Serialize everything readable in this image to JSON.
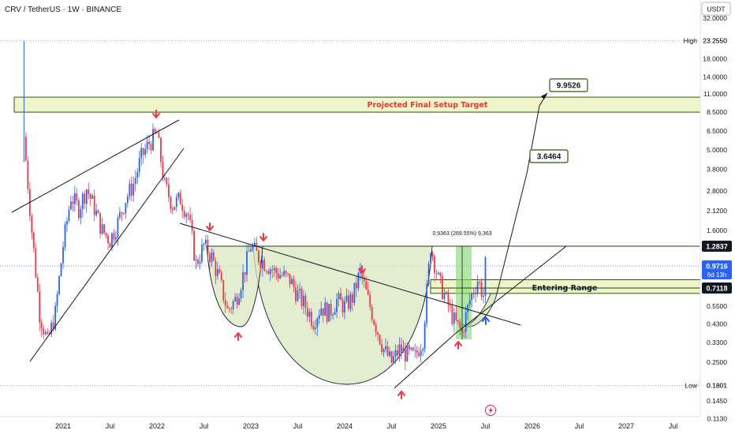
{
  "header": {
    "title": "CRV / TetherUS · 1W · BINANCE",
    "currency": "USDT"
  },
  "price_axis": {
    "ticks": [
      "32.0000",
      "23.2550",
      "18.0000",
      "14.0000",
      "11.0000",
      "8.5000",
      "6.5000",
      "5.0000",
      "3.8000",
      "2.8000",
      "2.1200",
      "1.6000",
      "1.2837",
      "0.9716",
      "0.7118",
      "0.5500",
      "0.4300",
      "0.3300",
      "0.2500",
      "0.1801",
      "0.1450",
      "0.1130"
    ],
    "high_label": "High",
    "low_label": "Low",
    "high_value": "23.2550",
    "low_value": "0.1801",
    "current_price": "0.9716",
    "countdown": "6d 13h",
    "level_1": "1.2837",
    "level_2": "0.7118"
  },
  "time_axis": [
    "2021",
    "Jul",
    "2022",
    "Jul",
    "2023",
    "Jul",
    "2024",
    "Jul",
    "2025",
    "Jul",
    "2026",
    "Jul",
    "2027",
    "Jul"
  ],
  "annotations": {
    "target_zone": "Projected Final Setup Target",
    "entry_zone": "Entering Range",
    "target_1": "3.6464",
    "target_2": "9.9526",
    "measure": "0.9363 (269.55%) 9,363"
  },
  "colors": {
    "up": "#2962ff",
    "down": "#f23645",
    "zone_fill": "#eef5c8",
    "zone_stroke": "#2e5b12",
    "pattern_fill": "#d9e8c0",
    "green_box": "#7fd86d"
  },
  "chart_data": {
    "type": "candlestick",
    "title": "CRV / TetherUS · 1W · BINANCE",
    "y_scale": "log",
    "ylim": [
      0.113,
      32
    ],
    "x_range": [
      "2020-08",
      "2027-09"
    ],
    "price_path": [
      [
        "2020-08",
        6.0
      ],
      [
        "2020-09",
        1.6
      ],
      [
        "2020-10",
        0.5
      ],
      [
        "2020-11",
        0.33
      ],
      [
        "2020-12",
        0.5
      ],
      [
        "2021-01",
        1.3
      ],
      [
        "2021-02",
        2.6
      ],
      [
        "2021-03",
        2.2
      ],
      [
        "2021-04",
        2.9
      ],
      [
        "2021-05",
        2.2
      ],
      [
        "2021-06",
        1.6
      ],
      [
        "2021-07",
        1.4
      ],
      [
        "2021-08",
        1.8
      ],
      [
        "2021-09",
        2.5
      ],
      [
        "2021-10",
        3.1
      ],
      [
        "2021-11",
        4.5
      ],
      [
        "2021-12",
        5.5
      ],
      [
        "2022-01",
        6.3
      ],
      [
        "2022-02",
        3.0
      ],
      [
        "2022-03",
        2.3
      ],
      [
        "2022-04",
        2.5
      ],
      [
        "2022-05",
        2.0
      ],
      [
        "2022-06",
        1.0
      ],
      [
        "2022-07",
        1.3
      ],
      [
        "2022-08",
        1.1
      ],
      [
        "2022-09",
        0.8
      ],
      [
        "2022-10",
        0.52
      ],
      [
        "2022-11",
        0.6
      ],
      [
        "2022-12",
        0.85
      ],
      [
        "2023-01",
        1.3
      ],
      [
        "2023-02",
        1.1
      ],
      [
        "2023-03",
        1.0
      ],
      [
        "2023-04",
        0.9
      ],
      [
        "2023-05",
        0.85
      ],
      [
        "2023-06",
        0.8
      ],
      [
        "2023-07",
        0.65
      ],
      [
        "2023-08",
        0.55
      ],
      [
        "2023-09",
        0.45
      ],
      [
        "2023-10",
        0.55
      ],
      [
        "2023-11",
        0.5
      ],
      [
        "2023-12",
        0.6
      ],
      [
        "2024-01",
        0.55
      ],
      [
        "2024-02",
        0.62
      ],
      [
        "2024-03",
        0.9
      ],
      [
        "2024-04",
        0.6
      ],
      [
        "2024-05",
        0.42
      ],
      [
        "2024-06",
        0.3
      ],
      [
        "2024-07",
        0.25
      ],
      [
        "2024-08",
        0.3
      ],
      [
        "2024-09",
        0.28
      ],
      [
        "2024-10",
        0.27
      ],
      [
        "2024-11",
        0.35
      ],
      [
        "2024-12",
        1.3
      ],
      [
        "2025-01",
        0.8
      ],
      [
        "2025-02",
        0.6
      ],
      [
        "2025-03",
        0.45
      ],
      [
        "2025-04",
        0.38
      ],
      [
        "2025-05",
        0.6
      ],
      [
        "2025-06",
        0.8
      ],
      [
        "2025-07",
        0.6
      ],
      [
        "2025-07",
        0.97
      ]
    ],
    "all_time_high": 23.255,
    "low": 0.1801,
    "current_price": 0.9716,
    "horizontal_levels": [
      1.2837,
      0.7118
    ],
    "targets": [
      3.6464,
      9.9526
    ],
    "target_zone": [
      8.5,
      10.5
    ],
    "entry_zone": [
      0.66,
      0.8
    ]
  }
}
